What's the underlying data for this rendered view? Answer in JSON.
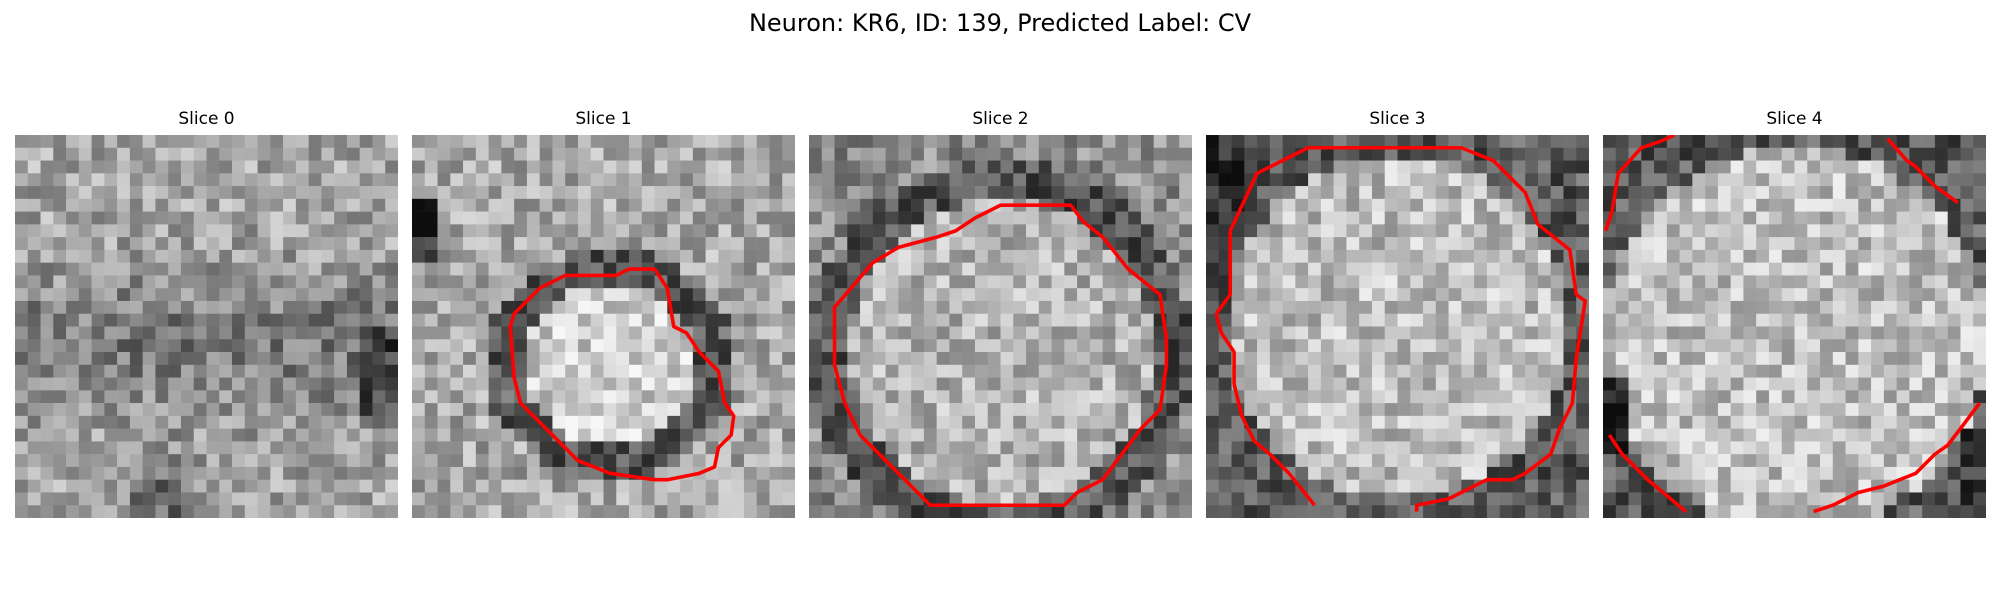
{
  "figure": {
    "title": "Neuron: KR6, ID: 139, Predicted Label: CV"
  },
  "colors": {
    "contour": "#ff0000",
    "background": "#ffffff"
  },
  "slices": [
    {
      "title": "Slice 0",
      "has_contour": false,
      "seed": 11,
      "pattern": "noise"
    },
    {
      "title": "Slice 1",
      "has_contour": true,
      "seed": 23,
      "pattern": "small-cell"
    },
    {
      "title": "Slice 2",
      "has_contour": true,
      "seed": 37,
      "pattern": "large-cell"
    },
    {
      "title": "Slice 3",
      "has_contour": true,
      "seed": 51,
      "pattern": "fill-cell"
    },
    {
      "title": "Slice 4",
      "has_contour": true,
      "seed": 67,
      "pattern": "edge-cell"
    }
  ]
}
